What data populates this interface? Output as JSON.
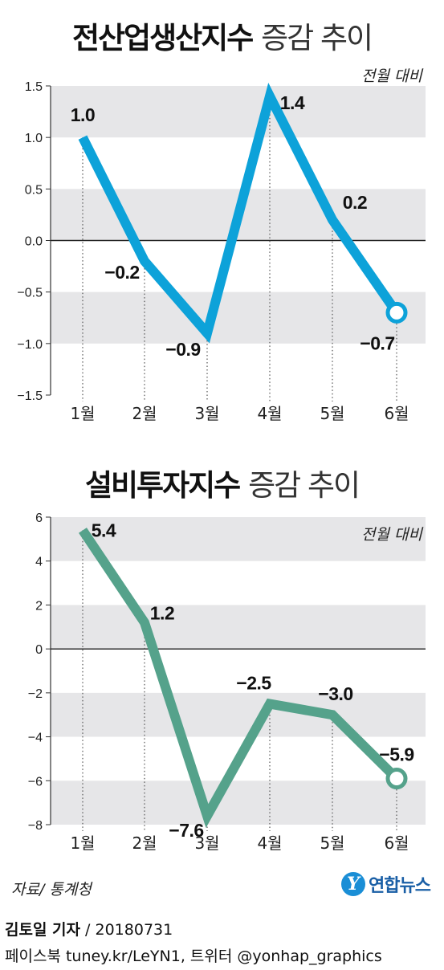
{
  "charts": [
    {
      "title_bold": "전산업생산지수",
      "title_light": "증감 추이"
    },
    {
      "title_bold": "설비투자지수",
      "title_light": "증감 추이"
    }
  ],
  "chart_data": [
    {
      "type": "line",
      "title": "전산업생산지수 증감 추이",
      "unit_note": "전월 대비",
      "categories": [
        "1월",
        "2월",
        "3월",
        "4월",
        "5월",
        "6월"
      ],
      "values": [
        1.0,
        -0.2,
        -0.9,
        1.4,
        0.2,
        -0.7
      ],
      "value_labels": [
        "1.0",
        "−0.2",
        "−0.9",
        "1.4",
        "0.2",
        "−0.7"
      ],
      "ylim": [
        -1.5,
        1.5
      ],
      "yticks": [
        1.5,
        1.0,
        0.5,
        0.0,
        -0.5,
        -1.0,
        -1.5
      ],
      "ytick_labels": [
        "1.5",
        "1.0",
        "0.5",
        "0.0",
        "−0.5",
        "−1.0",
        "−1.5"
      ],
      "grid": "alternating bands",
      "color": "#0da2d9"
    },
    {
      "type": "line",
      "title": "설비투자지수 증감 추이",
      "unit_note": "전월 대비",
      "categories": [
        "1월",
        "2월",
        "3월",
        "4월",
        "5월",
        "6월"
      ],
      "values": [
        5.4,
        1.2,
        -7.6,
        -2.5,
        -3.0,
        -5.9
      ],
      "value_labels": [
        "5.4",
        "1.2",
        "−7.6",
        "−2.5",
        "−3.0",
        "−5.9"
      ],
      "ylim": [
        -8,
        6
      ],
      "yticks": [
        6,
        4,
        2,
        0,
        -2,
        -4,
        -6,
        -8
      ],
      "ytick_labels": [
        "6",
        "4",
        "2",
        "0",
        "−2",
        "−4",
        "−6",
        "−8"
      ],
      "grid": "alternating bands",
      "color": "#55a28b"
    }
  ],
  "footer": {
    "source": "자료/ 통계청",
    "reporter_name": "김토일 기자",
    "reporter_date": " / 20180731",
    "social": "페이스북 tuney.kr/LeYN1, 트위터 @yonhap_graphics",
    "logo_text": "연합뉴스",
    "logo_mark": "Y"
  }
}
